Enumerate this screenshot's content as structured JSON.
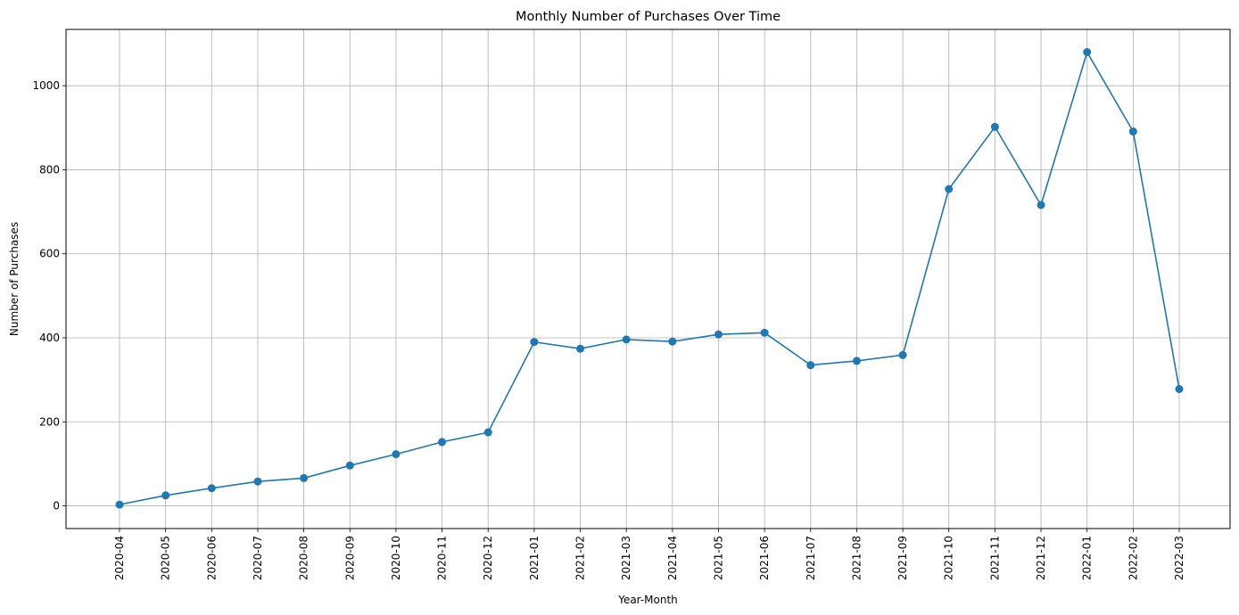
{
  "chart_data": {
    "type": "line",
    "title": "Monthly Number of Purchases Over Time",
    "xlabel": "Year-Month",
    "ylabel": "Number of Purchases",
    "categories": [
      "2020-04",
      "2020-05",
      "2020-06",
      "2020-07",
      "2020-08",
      "2020-09",
      "2020-10",
      "2020-11",
      "2020-12",
      "2021-01",
      "2021-02",
      "2021-03",
      "2021-04",
      "2021-05",
      "2021-06",
      "2021-07",
      "2021-08",
      "2021-09",
      "2021-10",
      "2021-11",
      "2021-12",
      "2022-01",
      "2022-02",
      "2022-03"
    ],
    "series": [
      {
        "values": [
          3,
          25,
          42,
          58,
          66,
          96,
          123,
          152,
          175,
          390,
          374,
          396,
          391,
          408,
          412,
          335,
          345,
          359,
          754,
          902,
          716,
          1080,
          891,
          278
        ]
      }
    ],
    "ylim": [
      -54,
      1134
    ],
    "yticks": [
      0,
      200,
      400,
      600,
      800,
      1000
    ],
    "grid": true,
    "line_color": "#1f77b4",
    "marker": "circle"
  }
}
